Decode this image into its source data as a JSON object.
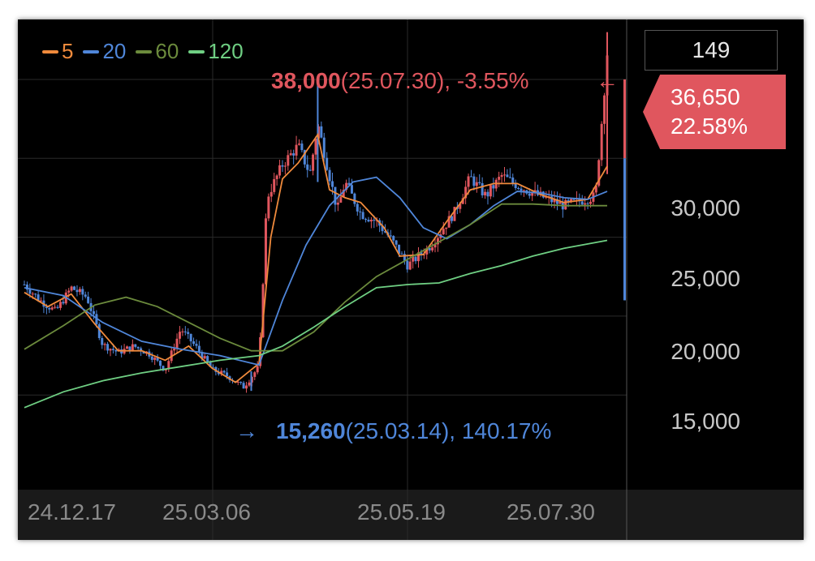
{
  "colors": {
    "background": "#000000",
    "up": "#e0565e",
    "down": "#4f86d9",
    "ma5": "#f08a3c",
    "ma20": "#4f86d9",
    "ma60": "#6b8a3c",
    "ma120": "#6fcf83",
    "grid": "#2a2a2a",
    "axis_text": "#c8c8c8",
    "date_text": "#8a8a8a"
  },
  "legend": [
    {
      "label": "5",
      "color": "#f08a3c"
    },
    {
      "label": "20",
      "color": "#4f86d9"
    },
    {
      "label": "60",
      "color": "#6b8a3c"
    },
    {
      "label": "120",
      "color": "#6fcf83"
    }
  ],
  "counter_box": "149",
  "current_price": {
    "price": "36,650",
    "change": "22.58%"
  },
  "high_annotation": {
    "arrow": "←",
    "value": "38,000",
    "rest": "(25.07.30), -3.55%"
  },
  "low_annotation": {
    "arrow": "→",
    "value": "15,260",
    "rest": "(25.03.14), 140.17%"
  },
  "chart_data": {
    "type": "line",
    "y_ticks": [
      "30,000",
      "25,000",
      "20,000",
      "15,000"
    ],
    "x_ticks": [
      "24.12.17",
      "25.03.06",
      "25.05.19",
      "25.07.30"
    ],
    "ylim": [
      9000,
      38800
    ],
    "grid": true,
    "high": {
      "value": 38000,
      "date": "25.07.30"
    },
    "low": {
      "value": 15260,
      "date": "25.03.14"
    },
    "last": 36650,
    "close_series": [
      {
        "x": 0.0,
        "y": 22000
      },
      {
        "x": 0.02,
        "y": 21000
      },
      {
        "x": 0.04,
        "y": 20300
      },
      {
        "x": 0.06,
        "y": 21800
      },
      {
        "x": 0.08,
        "y": 21200
      },
      {
        "x": 0.1,
        "y": 18200
      },
      {
        "x": 0.12,
        "y": 17700
      },
      {
        "x": 0.14,
        "y": 18100
      },
      {
        "x": 0.16,
        "y": 17600
      },
      {
        "x": 0.18,
        "y": 16600
      },
      {
        "x": 0.2,
        "y": 19200
      },
      {
        "x": 0.22,
        "y": 18000
      },
      {
        "x": 0.24,
        "y": 16600
      },
      {
        "x": 0.26,
        "y": 16200
      },
      {
        "x": 0.28,
        "y": 15500
      },
      {
        "x": 0.3,
        "y": 16800
      },
      {
        "x": 0.31,
        "y": 27500
      },
      {
        "x": 0.33,
        "y": 29600
      },
      {
        "x": 0.35,
        "y": 30800
      },
      {
        "x": 0.365,
        "y": 29000
      },
      {
        "x": 0.375,
        "y": 32200
      },
      {
        "x": 0.385,
        "y": 30000
      },
      {
        "x": 0.4,
        "y": 26700
      },
      {
        "x": 0.41,
        "y": 28500
      },
      {
        "x": 0.43,
        "y": 26500
      },
      {
        "x": 0.45,
        "y": 26000
      },
      {
        "x": 0.47,
        "y": 24800
      },
      {
        "x": 0.49,
        "y": 23200
      },
      {
        "x": 0.52,
        "y": 24500
      },
      {
        "x": 0.55,
        "y": 26600
      },
      {
        "x": 0.57,
        "y": 28800
      },
      {
        "x": 0.59,
        "y": 27600
      },
      {
        "x": 0.61,
        "y": 28900
      },
      {
        "x": 0.63,
        "y": 28300
      },
      {
        "x": 0.65,
        "y": 27800
      },
      {
        "x": 0.67,
        "y": 27400
      },
      {
        "x": 0.69,
        "y": 27000
      },
      {
        "x": 0.71,
        "y": 27300
      },
      {
        "x": 0.73,
        "y": 27600
      },
      {
        "x": 0.74,
        "y": 33500
      },
      {
        "x": 0.745,
        "y": 36650
      }
    ],
    "series": [
      {
        "name": "5",
        "values": [
          {
            "x": 0.0,
            "y": 21500
          },
          {
            "x": 0.03,
            "y": 20600
          },
          {
            "x": 0.06,
            "y": 21400
          },
          {
            "x": 0.09,
            "y": 19500
          },
          {
            "x": 0.12,
            "y": 17800
          },
          {
            "x": 0.15,
            "y": 17800
          },
          {
            "x": 0.18,
            "y": 17200
          },
          {
            "x": 0.21,
            "y": 18100
          },
          {
            "x": 0.24,
            "y": 16700
          },
          {
            "x": 0.27,
            "y": 15800
          },
          {
            "x": 0.3,
            "y": 17000
          },
          {
            "x": 0.315,
            "y": 25000
          },
          {
            "x": 0.33,
            "y": 28700
          },
          {
            "x": 0.35,
            "y": 29700
          },
          {
            "x": 0.375,
            "y": 31500
          },
          {
            "x": 0.39,
            "y": 28000
          },
          {
            "x": 0.41,
            "y": 27500
          },
          {
            "x": 0.43,
            "y": 27200
          },
          {
            "x": 0.46,
            "y": 25600
          },
          {
            "x": 0.48,
            "y": 23800
          },
          {
            "x": 0.51,
            "y": 23900
          },
          {
            "x": 0.54,
            "y": 26000
          },
          {
            "x": 0.57,
            "y": 28000
          },
          {
            "x": 0.6,
            "y": 28400
          },
          {
            "x": 0.63,
            "y": 28400
          },
          {
            "x": 0.66,
            "y": 27700
          },
          {
            "x": 0.69,
            "y": 27200
          },
          {
            "x": 0.72,
            "y": 27400
          },
          {
            "x": 0.745,
            "y": 29500
          }
        ]
      },
      {
        "name": "20",
        "values": [
          {
            "x": 0.0,
            "y": 21800
          },
          {
            "x": 0.05,
            "y": 21300
          },
          {
            "x": 0.1,
            "y": 19600
          },
          {
            "x": 0.15,
            "y": 18400
          },
          {
            "x": 0.2,
            "y": 17900
          },
          {
            "x": 0.25,
            "y": 17500
          },
          {
            "x": 0.3,
            "y": 16900
          },
          {
            "x": 0.33,
            "y": 21000
          },
          {
            "x": 0.36,
            "y": 24500
          },
          {
            "x": 0.39,
            "y": 27000
          },
          {
            "x": 0.42,
            "y": 28500
          },
          {
            "x": 0.45,
            "y": 28800
          },
          {
            "x": 0.48,
            "y": 27500
          },
          {
            "x": 0.51,
            "y": 25600
          },
          {
            "x": 0.54,
            "y": 24900
          },
          {
            "x": 0.57,
            "y": 25800
          },
          {
            "x": 0.6,
            "y": 27000
          },
          {
            "x": 0.63,
            "y": 27900
          },
          {
            "x": 0.66,
            "y": 27800
          },
          {
            "x": 0.69,
            "y": 27500
          },
          {
            "x": 0.72,
            "y": 27400
          },
          {
            "x": 0.745,
            "y": 27900
          }
        ]
      },
      {
        "name": "60",
        "values": [
          {
            "x": 0.0,
            "y": 17900
          },
          {
            "x": 0.05,
            "y": 19400
          },
          {
            "x": 0.09,
            "y": 20700
          },
          {
            "x": 0.13,
            "y": 21200
          },
          {
            "x": 0.17,
            "y": 20600
          },
          {
            "x": 0.21,
            "y": 19600
          },
          {
            "x": 0.25,
            "y": 18600
          },
          {
            "x": 0.29,
            "y": 17800
          },
          {
            "x": 0.33,
            "y": 17800
          },
          {
            "x": 0.37,
            "y": 19000
          },
          {
            "x": 0.41,
            "y": 20900
          },
          {
            "x": 0.45,
            "y": 22500
          },
          {
            "x": 0.49,
            "y": 23600
          },
          {
            "x": 0.53,
            "y": 24700
          },
          {
            "x": 0.57,
            "y": 25800
          },
          {
            "x": 0.61,
            "y": 27100
          },
          {
            "x": 0.65,
            "y": 27100
          },
          {
            "x": 0.69,
            "y": 27000
          },
          {
            "x": 0.745,
            "y": 27000
          }
        ]
      },
      {
        "name": "120",
        "values": [
          {
            "x": 0.0,
            "y": 14200
          },
          {
            "x": 0.05,
            "y": 15200
          },
          {
            "x": 0.1,
            "y": 15900
          },
          {
            "x": 0.15,
            "y": 16400
          },
          {
            "x": 0.2,
            "y": 16800
          },
          {
            "x": 0.25,
            "y": 17200
          },
          {
            "x": 0.3,
            "y": 17500
          },
          {
            "x": 0.33,
            "y": 18100
          },
          {
            "x": 0.37,
            "y": 19300
          },
          {
            "x": 0.41,
            "y": 20600
          },
          {
            "x": 0.45,
            "y": 21800
          },
          {
            "x": 0.49,
            "y": 22000
          },
          {
            "x": 0.53,
            "y": 22100
          },
          {
            "x": 0.57,
            "y": 22700
          },
          {
            "x": 0.61,
            "y": 23200
          },
          {
            "x": 0.65,
            "y": 23800
          },
          {
            "x": 0.69,
            "y": 24300
          },
          {
            "x": 0.745,
            "y": 24800
          }
        ]
      }
    ]
  }
}
